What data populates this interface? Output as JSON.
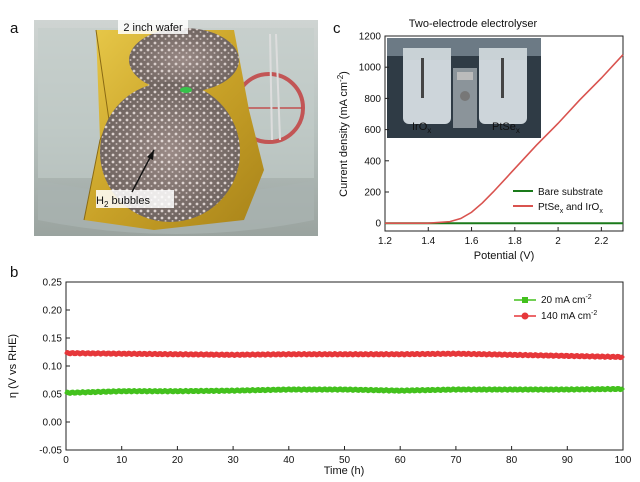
{
  "panels": {
    "a": {
      "letter": "a",
      "wafer_label": "2 inch wafer",
      "bubbles_label_prefix": "H",
      "bubbles_label_sub": "2",
      "bubbles_label_suffix": " bubbles"
    },
    "c": {
      "letter": "c",
      "title": "Two-electrode electrolyser",
      "inset_left_main": "IrO",
      "inset_left_sub": "x",
      "inset_right_main": "PtSe",
      "inset_right_sub": "x",
      "ylabel_main": "Current density (mA cm",
      "ylabel_sup": "-2",
      "ylabel_end": ")",
      "xlabel": "Potential (V)",
      "legend_bare": "Bare substrate",
      "legend_pt_a": "PtSe",
      "legend_pt_sub1": "x",
      "legend_pt_b": " and IrO",
      "legend_pt_sub2": "x",
      "xticks": [
        "1.2",
        "1.4",
        "1.6",
        "1.8",
        "2",
        "2.2"
      ],
      "yticks": [
        "0",
        "200",
        "400",
        "600",
        "800",
        "1000",
        "1200"
      ]
    },
    "b": {
      "letter": "b",
      "xlabel": "Time (h)",
      "ylabel": "η (V vs RHE)",
      "legend_20_main": "20 mA cm",
      "legend_20_sup": "-2",
      "legend_140_main": "140 mA cm",
      "legend_140_sup": "-2",
      "xticks": [
        "0",
        "10",
        "20",
        "30",
        "40",
        "50",
        "60",
        "70",
        "80",
        "90",
        "100"
      ],
      "yticks": [
        "0.25",
        "0.20",
        "0.15",
        "0.10",
        "0.05",
        "0.00",
        "-0.05"
      ]
    }
  },
  "colors": {
    "green": "#1a7a1a",
    "red": "#d9534f",
    "stab_green": "#43c11d",
    "stab_red": "#e6373a"
  },
  "chart_data": [
    {
      "type": "line",
      "panel": "c",
      "title": "Two-electrode electrolyser",
      "xlabel": "Potential (V)",
      "ylabel": "Current density (mA cm-2)",
      "xlim": [
        1.2,
        2.3
      ],
      "ylim": [
        -50,
        1200
      ],
      "legend": "bottom-right",
      "series": [
        {
          "name": "Bare substrate",
          "x": [
            1.2,
            1.4,
            1.6,
            1.8,
            2.0,
            2.2,
            2.3
          ],
          "y": [
            0,
            0,
            0,
            0,
            0,
            0,
            0
          ]
        },
        {
          "name": "PtSex and IrOx",
          "x": [
            1.2,
            1.4,
            1.5,
            1.55,
            1.6,
            1.65,
            1.7,
            1.8,
            1.9,
            2.0,
            2.1,
            2.2,
            2.3
          ],
          "y": [
            0,
            0,
            10,
            30,
            70,
            130,
            200,
            350,
            500,
            640,
            790,
            930,
            1080
          ]
        }
      ]
    },
    {
      "type": "line",
      "panel": "b",
      "xlabel": "Time (h)",
      "ylabel": "η (V vs RHE)",
      "xlim": [
        0,
        100
      ],
      "ylim": [
        -0.05,
        0.25
      ],
      "legend": "top-right",
      "series": [
        {
          "name": "20 mA cm-2",
          "x": [
            0,
            10,
            20,
            30,
            40,
            50,
            60,
            70,
            80,
            90,
            100
          ],
          "y": [
            0.052,
            0.055,
            0.055,
            0.056,
            0.058,
            0.058,
            0.056,
            0.058,
            0.058,
            0.058,
            0.059
          ]
        },
        {
          "name": "140 mA cm-2",
          "x": [
            0,
            10,
            20,
            30,
            40,
            50,
            60,
            70,
            80,
            90,
            100
          ],
          "y": [
            0.123,
            0.122,
            0.121,
            0.12,
            0.121,
            0.121,
            0.121,
            0.122,
            0.12,
            0.118,
            0.116
          ]
        }
      ]
    }
  ]
}
